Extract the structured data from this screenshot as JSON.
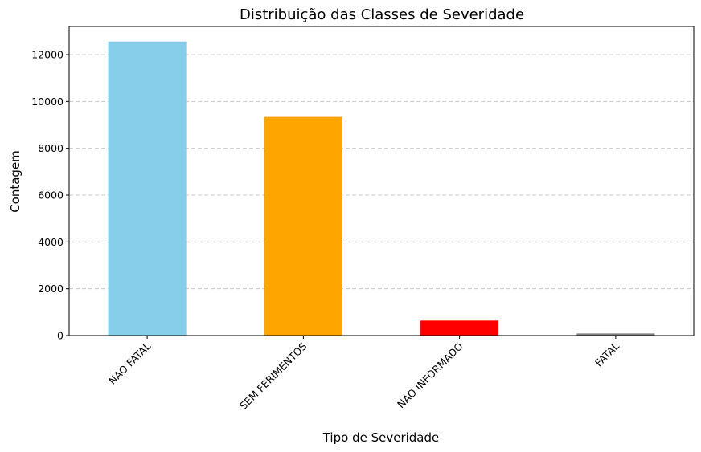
{
  "chart_data": {
    "type": "bar",
    "title": "Distribuição das Classes de Severidade",
    "xlabel": "Tipo de Severidade",
    "ylabel": "Contagem",
    "categories": [
      "NAO FATAL",
      "SEM FERIMENTOS",
      "NAO INFORMADO",
      "FATAL"
    ],
    "values": [
      12560,
      9340,
      640,
      90
    ],
    "colors": [
      "#87ceeb",
      "#ffa500",
      "#ff0000",
      "#808080"
    ],
    "ylim": [
      0,
      13200
    ],
    "yticks": [
      0,
      2000,
      4000,
      6000,
      8000,
      10000,
      12000
    ],
    "ytick_labels": [
      "0",
      "2000",
      "4000",
      "6000",
      "8000",
      "10000",
      "12000"
    ],
    "grid": "y-dashed",
    "xtick_rotation": "45 degrees",
    "legend": "none"
  }
}
